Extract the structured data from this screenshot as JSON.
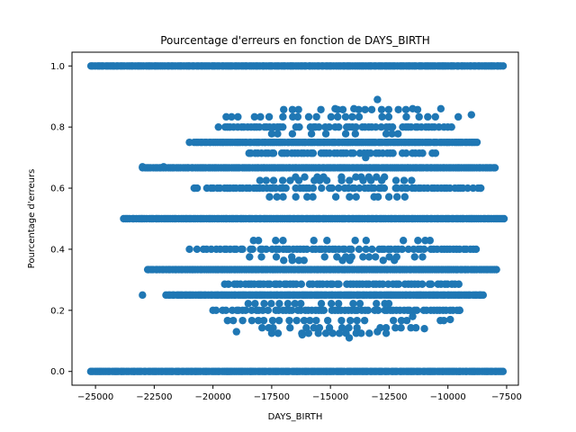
{
  "chart_data": {
    "type": "scatter",
    "title": "Pourcentage d'erreurs en fonction de DAYS_BIRTH",
    "xlabel": "DAYS_BIRTH",
    "ylabel": "Pourcentage d'erreurs",
    "xlim": [
      -26000,
      -7000
    ],
    "ylim": [
      -0.045,
      1.045
    ],
    "x_ticks": [
      -25000,
      -22500,
      -20000,
      -17500,
      -15000,
      -12500,
      -10000,
      -7500
    ],
    "x_tick_labels": [
      "−25000",
      "−22500",
      "−20000",
      "−17500",
      "−15000",
      "−12500",
      "−10000",
      "−7500"
    ],
    "y_ticks": [
      0.0,
      0.2,
      0.4,
      0.6,
      0.8,
      1.0
    ],
    "y_tick_labels": [
      "0.0",
      "0.2",
      "0.4",
      "0.6",
      "0.8",
      "1.0"
    ],
    "grid": false,
    "marker_color": "#1f77b4",
    "bands": [
      {
        "y": 1.0,
        "x_range": [
          -25200,
          -7600
        ],
        "density": "dense"
      },
      {
        "y": 0.0,
        "x_range": [
          -25200,
          -7600
        ],
        "density": "dense"
      },
      {
        "y": 0.5,
        "x_range": [
          -23800,
          -7600
        ],
        "density": "dense"
      },
      {
        "y": 0.6667,
        "x_range": [
          -23000,
          -7900
        ],
        "density": "dense"
      },
      {
        "y": 0.3333,
        "x_range": [
          -22800,
          -7900
        ],
        "density": "dense"
      },
      {
        "y": 0.75,
        "x_range": [
          -20800,
          -8700
        ],
        "density": "dense"
      },
      {
        "y": 0.25,
        "x_range": [
          -22000,
          -8500
        ],
        "density": "dense"
      },
      {
        "y": 0.8,
        "x_range": [
          -19800,
          -9700
        ],
        "density": "medium"
      },
      {
        "y": 0.2,
        "x_range": [
          -20000,
          -9500
        ],
        "density": "medium"
      },
      {
        "y": 0.6,
        "x_range": [
          -20800,
          -8500
        ],
        "density": "medium"
      },
      {
        "y": 0.4,
        "x_range": [
          -20800,
          -8800
        ],
        "density": "medium"
      },
      {
        "y": 0.7143,
        "x_range": [
          -18500,
          -10500
        ],
        "density": "medium"
      },
      {
        "y": 0.2857,
        "x_range": [
          -19500,
          -9500
        ],
        "density": "medium"
      },
      {
        "y": 0.8333,
        "x_range": [
          -19500,
          -9500
        ],
        "density": "sparse"
      },
      {
        "y": 0.1667,
        "x_range": [
          -20000,
          -10000
        ],
        "density": "sparse"
      },
      {
        "y": 0.4286,
        "x_range": [
          -19000,
          -10500
        ],
        "density": "sparse"
      },
      {
        "y": 0.5714,
        "x_range": [
          -18000,
          -11000
        ],
        "density": "sparse"
      },
      {
        "y": 0.625,
        "x_range": [
          -18000,
          -11500
        ],
        "density": "sparse"
      },
      {
        "y": 0.375,
        "x_range": [
          -18500,
          -11000
        ],
        "density": "sparse"
      },
      {
        "y": 0.2222,
        "x_range": [
          -18500,
          -11500
        ],
        "density": "sparse"
      },
      {
        "y": 0.7778,
        "x_range": [
          -17500,
          -12000
        ],
        "density": "sparse"
      },
      {
        "y": 0.1429,
        "x_range": [
          -18000,
          -11000
        ],
        "density": "sparse"
      },
      {
        "y": 0.8571,
        "x_range": [
          -17000,
          -11000
        ],
        "density": "sparse"
      },
      {
        "y": 0.125,
        "x_range": [
          -17500,
          -12500
        ],
        "density": "sparse"
      },
      {
        "y": 0.6364,
        "x_range": [
          -16500,
          -12500
        ],
        "density": "sparse"
      },
      {
        "y": 0.3636,
        "x_range": [
          -17000,
          -12000
        ],
        "density": "sparse"
      }
    ],
    "points": [
      {
        "x": -13000,
        "y": 0.89
      },
      {
        "x": -14000,
        "y": 0.86
      },
      {
        "x": -14800,
        "y": 0.86
      },
      {
        "x": -11500,
        "y": 0.86
      },
      {
        "x": -10300,
        "y": 0.86
      },
      {
        "x": -9000,
        "y": 0.84
      },
      {
        "x": -21000,
        "y": 0.75
      },
      {
        "x": -23000,
        "y": 0.67
      },
      {
        "x": -22100,
        "y": 0.67
      },
      {
        "x": -20800,
        "y": 0.6
      },
      {
        "x": -8600,
        "y": 0.6
      },
      {
        "x": -13500,
        "y": 0.7
      },
      {
        "x": -14200,
        "y": 0.11
      },
      {
        "x": -19000,
        "y": 0.13
      },
      {
        "x": -16200,
        "y": 0.12
      },
      {
        "x": -13000,
        "y": 0.13
      },
      {
        "x": -11000,
        "y": 0.14
      },
      {
        "x": -21000,
        "y": 0.4
      },
      {
        "x": -8800,
        "y": 0.4
      },
      {
        "x": -23000,
        "y": 0.25
      },
      {
        "x": -8600,
        "y": 0.25
      },
      {
        "x": -9500,
        "y": 0.2
      },
      {
        "x": -11500,
        "y": 0.18
      },
      {
        "x": -9900,
        "y": 0.17
      }
    ]
  }
}
